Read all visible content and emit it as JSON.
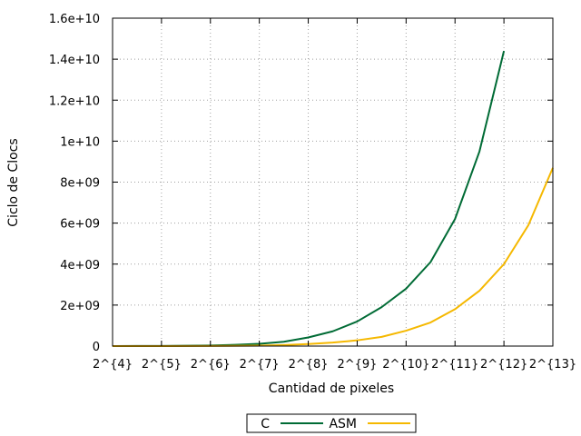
{
  "chart_data": {
    "type": "line",
    "xlabel": "Cantidad de pixeles",
    "ylabel": "Ciclo de Clocs",
    "x_ticks": [
      "2^{4}",
      "2^{5}",
      "2^{6}",
      "2^{7}",
      "2^{8}",
      "2^{9}",
      "2^{10}",
      "2^{11}",
      "2^{12}",
      "2^{13}"
    ],
    "y_ticks": [
      "0",
      "2e+09",
      "4e+09",
      "6e+09",
      "8e+09",
      "1e+10",
      "1.2e+10",
      "1.4e+10",
      "1.6e+10"
    ],
    "xlim": [
      4,
      13
    ],
    "ylim": [
      0,
      16000000000
    ],
    "grid": true,
    "legend_position": "bottom-center",
    "series": [
      {
        "name": "C",
        "color": "#006b35",
        "x": [
          4,
          4.5,
          5,
          5.5,
          6,
          6.5,
          7,
          7.5,
          8,
          8.5,
          9,
          9.5,
          10,
          10.5,
          11,
          11.5,
          12
        ],
        "y": [
          1000000,
          3000000,
          7000000,
          15000000,
          30000000,
          60000000,
          110000000,
          210000000,
          420000000,
          720000000,
          1200000000,
          1900000000,
          2800000000,
          4100000000,
          6200000000,
          9500000000,
          14400000000
        ]
      },
      {
        "name": "ASM",
        "color": "#f5b800",
        "x": [
          4,
          5,
          6,
          7,
          7.5,
          8,
          8.5,
          9,
          9.5,
          10,
          10.5,
          11,
          11.5,
          12,
          12.5,
          13
        ],
        "y": [
          0,
          1000000,
          5000000,
          25000000,
          50000000,
          100000000,
          170000000,
          280000000,
          450000000,
          750000000,
          1150000000,
          1800000000,
          2700000000,
          4000000000,
          5900000000,
          8700000000
        ]
      }
    ]
  }
}
